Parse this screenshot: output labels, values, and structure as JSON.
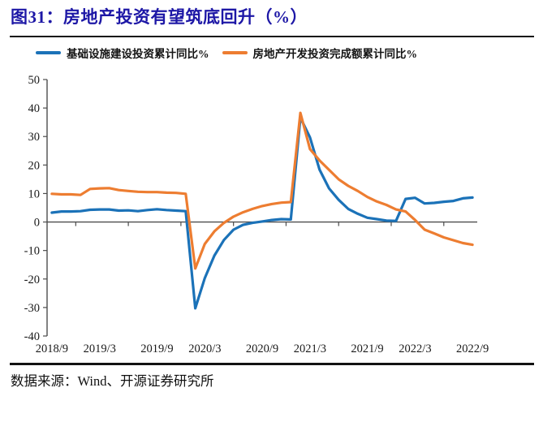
{
  "title": "图31：房地产投资有望筑底回升（%）",
  "source_note": "数据来源：Wind、开源证券研究所",
  "legend": [
    {
      "label": "基础设施建设投资累计同比%",
      "color": "#1B72B8"
    },
    {
      "label": "房地产开发投资完成额累计同比%",
      "color": "#ED7D31"
    }
  ],
  "colors": {
    "title_navy": "#1D17A6",
    "series_blue": "#1B72B8",
    "series_orange": "#ED7D31",
    "axis_gray": "#4d4d4d",
    "rule_black": "#121212"
  },
  "chart_data": {
    "type": "line",
    "title": "图31：房地产投资有望筑底回升（%）",
    "xlabel": "",
    "ylabel": "",
    "ylim": [
      -40,
      50
    ],
    "ytick_step": 10,
    "grid": false,
    "legend_position": "top",
    "x": [
      "2018/9",
      "2018/10",
      "2018/11",
      "2018/12",
      "2019/2",
      "2019/3",
      "2019/4",
      "2019/5",
      "2019/6",
      "2019/7",
      "2019/8",
      "2019/9",
      "2019/10",
      "2019/11",
      "2019/12",
      "2020/2",
      "2020/3",
      "2020/4",
      "2020/5",
      "2020/6",
      "2020/7",
      "2020/8",
      "2020/9",
      "2020/10",
      "2020/11",
      "2020/12",
      "2021/2",
      "2021/3",
      "2021/4",
      "2021/5",
      "2021/6",
      "2021/7",
      "2021/8",
      "2021/9",
      "2021/10",
      "2021/11",
      "2021/12",
      "2022/2",
      "2022/3",
      "2022/4",
      "2022/5",
      "2022/6",
      "2022/7",
      "2022/8",
      "2022/9"
    ],
    "xtick_labels": [
      "2018/9",
      "2019/3",
      "2019/9",
      "2020/3",
      "2020/9",
      "2021/3",
      "2021/9",
      "2022/3",
      "2022/9"
    ],
    "series": [
      {
        "name": "基础设施建设投资累计同比%",
        "color": "#1B72B8",
        "values": [
          3.3,
          3.7,
          3.7,
          3.8,
          4.3,
          4.4,
          4.4,
          4.0,
          4.1,
          3.8,
          4.2,
          4.5,
          4.2,
          4.0,
          3.8,
          -30.3,
          -19.7,
          -11.8,
          -6.3,
          -2.7,
          -1.0,
          -0.3,
          0.2,
          0.7,
          1.0,
          0.9,
          36.6,
          29.7,
          18.4,
          11.8,
          7.8,
          4.6,
          2.9,
          1.5,
          1.0,
          0.5,
          0.4,
          8.1,
          8.5,
          6.5,
          6.7,
          7.1,
          7.4,
          8.3,
          8.6
        ]
      },
      {
        "name": "房地产开发投资完成额累计同比%",
        "color": "#ED7D31",
        "values": [
          9.9,
          9.7,
          9.7,
          9.5,
          11.6,
          11.8,
          11.9,
          11.2,
          10.9,
          10.6,
          10.5,
          10.5,
          10.3,
          10.2,
          9.9,
          -16.3,
          -7.7,
          -3.3,
          -0.3,
          1.9,
          3.4,
          4.6,
          5.6,
          6.3,
          6.8,
          7.0,
          38.3,
          25.6,
          21.6,
          18.3,
          15.0,
          12.7,
          10.9,
          8.8,
          7.2,
          6.0,
          4.4,
          3.7,
          0.7,
          -2.7,
          -4.0,
          -5.4,
          -6.4,
          -7.4,
          -8.0
        ]
      }
    ]
  }
}
